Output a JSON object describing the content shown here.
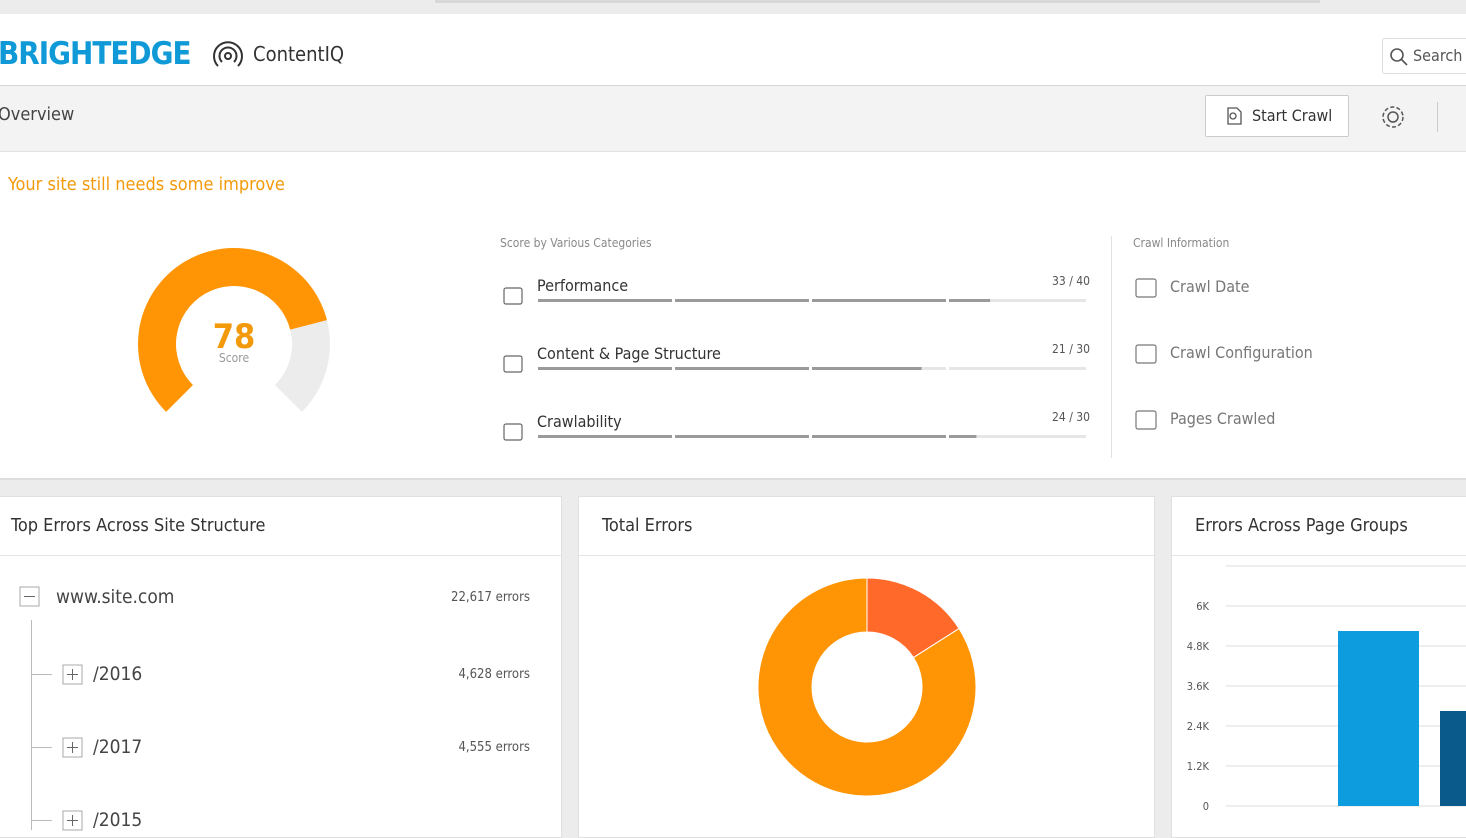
{
  "header": {
    "logo": "BRIGHTEDGE",
    "product": "ContentIQ",
    "search": "Search"
  },
  "toolbar": {
    "title": "Overview",
    "start_crawl": "Start Crawl"
  },
  "summary": {
    "message": "Your site still needs some improve",
    "score": 78,
    "score_label": "Score",
    "categories_title": "Score by Various Categories",
    "categories": [
      {
        "name": "Performance",
        "score": 33,
        "max": 40,
        "label": "33 / 40"
      },
      {
        "name": "Content & Page Structure",
        "score": 21,
        "max": 30,
        "label": "21 / 30"
      },
      {
        "name": "Crawlability",
        "score": 24,
        "max": 30,
        "label": "24 / 30"
      }
    ],
    "crawl_title": "Crawl Information",
    "crawl_items": [
      "Crawl Date",
      "Crawl Configuration",
      "Pages Crawled"
    ]
  },
  "top_errors": {
    "title": "Top Errors Across Site Structure",
    "root": {
      "name": "www.site.com",
      "errors": "22,617 errors"
    },
    "children": [
      {
        "name": "/2016",
        "errors": "4,628 errors"
      },
      {
        "name": "/2017",
        "errors": "4,555 errors"
      },
      {
        "name": "/2015"
      }
    ]
  },
  "total_errors": {
    "title": "Total Errors",
    "slices": [
      {
        "value": 16,
        "color": "#ff6a2b"
      },
      {
        "value": 84,
        "color": "#ff9505"
      }
    ]
  },
  "page_groups": {
    "title": "Errors Across Page Groups",
    "ylim": [
      0,
      7200
    ],
    "yticks": [
      0,
      {
        "value": 1200,
        "label": "1.2K"
      },
      {
        "value": 2400,
        "label": "2.4K"
      },
      {
        "value": 3600,
        "label": "3.6K"
      },
      {
        "value": 4800,
        "label": "4.8K"
      },
      {
        "value": 6000,
        "label": "6K"
      }
    ],
    "bars": [
      {
        "value": 5250,
        "color": "#0d9ddf"
      },
      {
        "value": 2850,
        "color": "#0b5a8c"
      }
    ]
  }
}
